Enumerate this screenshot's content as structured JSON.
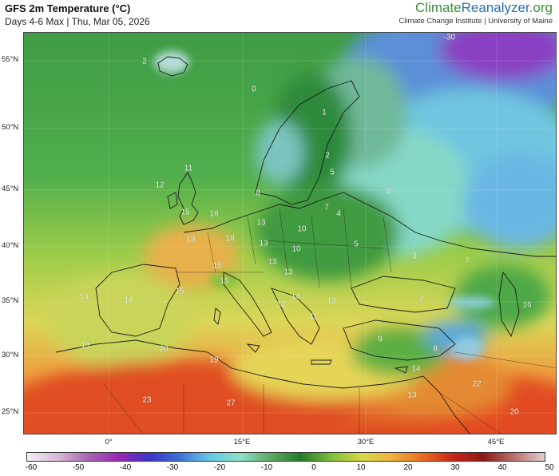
{
  "header": {
    "title": "GFS 2m Temperature (°C)",
    "subtitle": "Days 4-6 Max | Thu, Mar 05, 2026",
    "brand_part1": "Climate",
    "brand_part2": "Reanalyzer",
    "brand_part3": ".org",
    "brand_sub": "Climate Change Institute | University of Maine"
  },
  "axes": {
    "lat_labels": [
      "55°N",
      "50°N",
      "45°N",
      "40°N",
      "35°N",
      "30°N",
      "25°N"
    ],
    "lon_labels": [
      "0°",
      "15°E",
      "30°E",
      "45°E"
    ]
  },
  "colorbar": {
    "ticks": [
      "-60",
      "-50",
      "-40",
      "-30",
      "-20",
      "-10",
      "0",
      "10",
      "20",
      "30",
      "40",
      "50"
    ],
    "colors": [
      "#f4f0f4",
      "#d9b8d9",
      "#a866b0",
      "#9a28b5",
      "#3b33c9",
      "#3d6fd6",
      "#66c8e6",
      "#8fe0c8",
      "#5aaa60",
      "#247a2a",
      "#7fbf3a",
      "#d8d84a",
      "#f0b040",
      "#ea6a20",
      "#c62418",
      "#8c1a14",
      "#b8706c",
      "#e0d0d0"
    ]
  },
  "map_labels": [
    {
      "text": "-30"
    },
    {
      "text": "2"
    },
    {
      "text": "0"
    },
    {
      "text": "11"
    },
    {
      "text": "12"
    },
    {
      "text": "15"
    },
    {
      "text": "16"
    },
    {
      "text": "5"
    },
    {
      "text": "8"
    },
    {
      "text": "7"
    },
    {
      "text": "4"
    },
    {
      "text": "13"
    },
    {
      "text": "10"
    },
    {
      "text": "5"
    },
    {
      "text": "18"
    },
    {
      "text": "18"
    },
    {
      "text": "13"
    },
    {
      "text": "3"
    },
    {
      "text": "7"
    },
    {
      "text": "10"
    },
    {
      "text": "13"
    },
    {
      "text": "13"
    },
    {
      "text": "15"
    },
    {
      "text": "15"
    },
    {
      "text": "14"
    },
    {
      "text": "12"
    },
    {
      "text": "14"
    },
    {
      "text": "11"
    },
    {
      "text": "13"
    },
    {
      "text": "2"
    },
    {
      "text": "15"
    },
    {
      "text": "13"
    },
    {
      "text": "16"
    },
    {
      "text": "9"
    },
    {
      "text": "8"
    },
    {
      "text": "20"
    },
    {
      "text": "19"
    },
    {
      "text": "13"
    },
    {
      "text": "14"
    },
    {
      "text": "22"
    },
    {
      "text": "23"
    },
    {
      "text": "27"
    },
    {
      "text": "13"
    },
    {
      "text": "20"
    },
    {
      "text": "1"
    },
    {
      "text": "0"
    },
    {
      "text": "2"
    }
  ]
}
